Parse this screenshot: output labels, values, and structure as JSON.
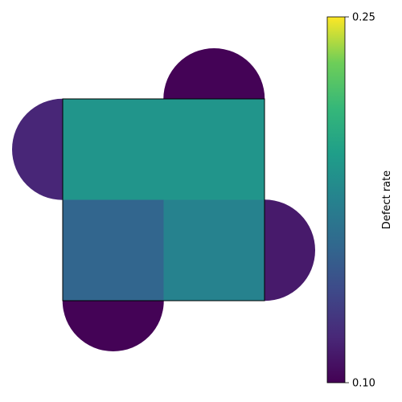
{
  "chart_data": {
    "type": "heatmap",
    "grid": {
      "rows": 2,
      "cols": 2,
      "values": [
        [
          0.188,
          0.188
        ],
        [
          0.155,
          0.175
        ]
      ]
    },
    "circles": [
      {
        "side": "left",
        "row": 0,
        "value": 0.118
      },
      {
        "side": "top",
        "col": 1,
        "value": 0.101
      },
      {
        "side": "right",
        "row": 1,
        "value": 0.112
      },
      {
        "side": "bottom",
        "col": 0,
        "value": 0.101
      }
    ],
    "colorbar": {
      "label": "Defect rate",
      "min": 0.1,
      "max": 0.25,
      "ticks": [
        {
          "value": 0.1,
          "label": "0.10"
        },
        {
          "value": 0.25,
          "label": "0.25"
        }
      ],
      "colormap": "viridis"
    }
  }
}
